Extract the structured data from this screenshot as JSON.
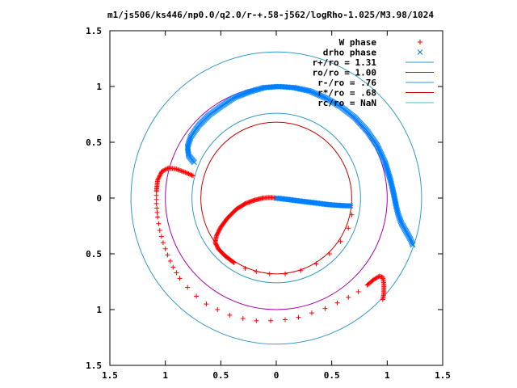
{
  "chart_data": {
    "type": "scatter",
    "title": "m1/js506/ks446/np0.0/q2.0/r-+.58-j562/logRho-1.025/M3.98/1024",
    "xlim": [
      -1.5,
      1.5
    ],
    "ylim": [
      -1.5,
      1.5
    ],
    "x_ticks": [
      {
        "value": -1.5,
        "label": "1.5"
      },
      {
        "value": -1.0,
        "label": "1"
      },
      {
        "value": -0.5,
        "label": "0.5"
      },
      {
        "value": 0.0,
        "label": "0"
      },
      {
        "value": 0.5,
        "label": "0.5"
      },
      {
        "value": 1.0,
        "label": "1"
      },
      {
        "value": 1.5,
        "label": "1.5"
      }
    ],
    "y_ticks": [
      {
        "value": 1.5,
        "label": "1.5"
      },
      {
        "value": 1.0,
        "label": "1"
      },
      {
        "value": 0.5,
        "label": "0.5"
      },
      {
        "value": 0.0,
        "label": "0"
      },
      {
        "value": -0.5,
        "label": "0.5"
      },
      {
        "value": -1.0,
        "label": "1"
      },
      {
        "value": -1.5,
        "label": "1.5"
      }
    ],
    "grid": false,
    "legend_position": "top-right",
    "series": [
      {
        "name": "W phase",
        "marker": "plus",
        "color": "#ff0000",
        "segments": [
          [
            [
              0.0,
              0.0
            ],
            [
              -0.05,
              0.005
            ],
            [
              -0.12,
              0.0
            ],
            [
              -0.2,
              -0.02
            ],
            [
              -0.28,
              -0.05
            ],
            [
              -0.36,
              -0.1
            ],
            [
              -0.44,
              -0.18
            ],
            [
              -0.5,
              -0.26
            ],
            [
              -0.54,
              -0.34
            ],
            [
              -0.55,
              -0.4
            ],
            [
              -0.52,
              -0.46
            ],
            [
              -0.46,
              -0.52
            ],
            [
              -0.38,
              -0.58
            ],
            [
              -0.28,
              -0.63
            ],
            [
              -0.18,
              -0.66
            ],
            [
              -0.06,
              -0.68
            ],
            [
              0.08,
              -0.68
            ],
            [
              0.22,
              -0.65
            ],
            [
              0.36,
              -0.59
            ],
            [
              0.48,
              -0.5
            ],
            [
              0.58,
              -0.39
            ],
            [
              0.65,
              -0.27
            ],
            [
              0.68,
              -0.15
            ],
            [
              0.67,
              -0.07
            ]
          ],
          [
            [
              -0.75,
              0.2
            ],
            [
              -0.82,
              0.23
            ],
            [
              -0.9,
              0.26
            ],
            [
              -0.97,
              0.27
            ],
            [
              -1.03,
              0.24
            ],
            [
              -1.07,
              0.16
            ],
            [
              -1.08,
              0.06
            ],
            [
              -1.08,
              -0.05
            ],
            [
              -1.07,
              -0.17
            ],
            [
              -1.05,
              -0.29
            ],
            [
              -1.02,
              -0.4
            ],
            [
              -0.98,
              -0.51
            ],
            [
              -0.93,
              -0.62
            ],
            [
              -0.87,
              -0.72
            ],
            [
              -0.8,
              -0.8
            ],
            [
              -0.72,
              -0.88
            ],
            [
              -0.63,
              -0.95
            ],
            [
              -0.53,
              -1.0
            ],
            [
              -0.42,
              -1.05
            ],
            [
              -0.3,
              -1.08
            ],
            [
              -0.18,
              -1.1
            ],
            [
              -0.05,
              -1.1
            ],
            [
              0.08,
              -1.09
            ],
            [
              0.2,
              -1.07
            ],
            [
              0.32,
              -1.03
            ],
            [
              0.44,
              -0.99
            ],
            [
              0.55,
              -0.94
            ],
            [
              0.65,
              -0.89
            ],
            [
              0.74,
              -0.84
            ],
            [
              0.82,
              -0.78
            ],
            [
              0.88,
              -0.73
            ],
            [
              0.93,
              -0.7
            ],
            [
              0.96,
              -0.71
            ],
            [
              0.97,
              -0.77
            ],
            [
              0.97,
              -0.85
            ],
            [
              0.96,
              -0.91
            ]
          ]
        ]
      },
      {
        "name": "drho phase",
        "marker": "cross",
        "color": "#0080ff",
        "segments": [
          [
            [
              0.0,
              0.0
            ],
            [
              0.08,
              -0.01
            ],
            [
              0.16,
              -0.02
            ],
            [
              0.24,
              -0.03
            ],
            [
              0.32,
              -0.04
            ],
            [
              0.4,
              -0.05
            ],
            [
              0.48,
              -0.06
            ],
            [
              0.56,
              -0.065
            ],
            [
              0.63,
              -0.07
            ],
            [
              0.67,
              -0.07
            ]
          ],
          [
            [
              -0.74,
              0.32
            ],
            [
              -0.79,
              0.38
            ],
            [
              -0.8,
              0.46
            ],
            [
              -0.77,
              0.55
            ],
            [
              -0.7,
              0.65
            ],
            [
              -0.61,
              0.74
            ],
            [
              -0.5,
              0.82
            ],
            [
              -0.38,
              0.9
            ],
            [
              -0.25,
              0.95
            ],
            [
              -0.11,
              0.99
            ],
            [
              0.02,
              1.0
            ],
            [
              0.16,
              0.99
            ],
            [
              0.3,
              0.96
            ],
            [
              0.44,
              0.9
            ],
            [
              0.58,
              0.82
            ],
            [
              0.71,
              0.72
            ],
            [
              0.82,
              0.6
            ],
            [
              0.91,
              0.47
            ],
            [
              0.98,
              0.32
            ],
            [
              1.03,
              0.16
            ],
            [
              1.06,
              0.03
            ],
            [
              1.08,
              -0.07
            ],
            [
              1.1,
              -0.15
            ],
            [
              1.13,
              -0.23
            ],
            [
              1.17,
              -0.3
            ],
            [
              1.21,
              -0.37
            ],
            [
              1.23,
              -0.42
            ]
          ]
        ]
      },
      {
        "name": "r+/ro = 1.31",
        "marker": "line",
        "color": "#3399cc",
        "radius": 1.31
      },
      {
        "name": "ro/ro = 1.00",
        "marker": "line",
        "color": "#aa00aa",
        "radius": 1.0
      },
      {
        "name": "r-/ro = .76",
        "marker": "line",
        "color": "#3399cc",
        "radius": 0.76
      },
      {
        "name": "r*/ro = .68",
        "marker": "line",
        "color": "#cc0000",
        "radius": 0.68
      },
      {
        "name": "rc/ro = NaN",
        "marker": "line",
        "color": "#33cccc",
        "radius": null
      }
    ]
  }
}
